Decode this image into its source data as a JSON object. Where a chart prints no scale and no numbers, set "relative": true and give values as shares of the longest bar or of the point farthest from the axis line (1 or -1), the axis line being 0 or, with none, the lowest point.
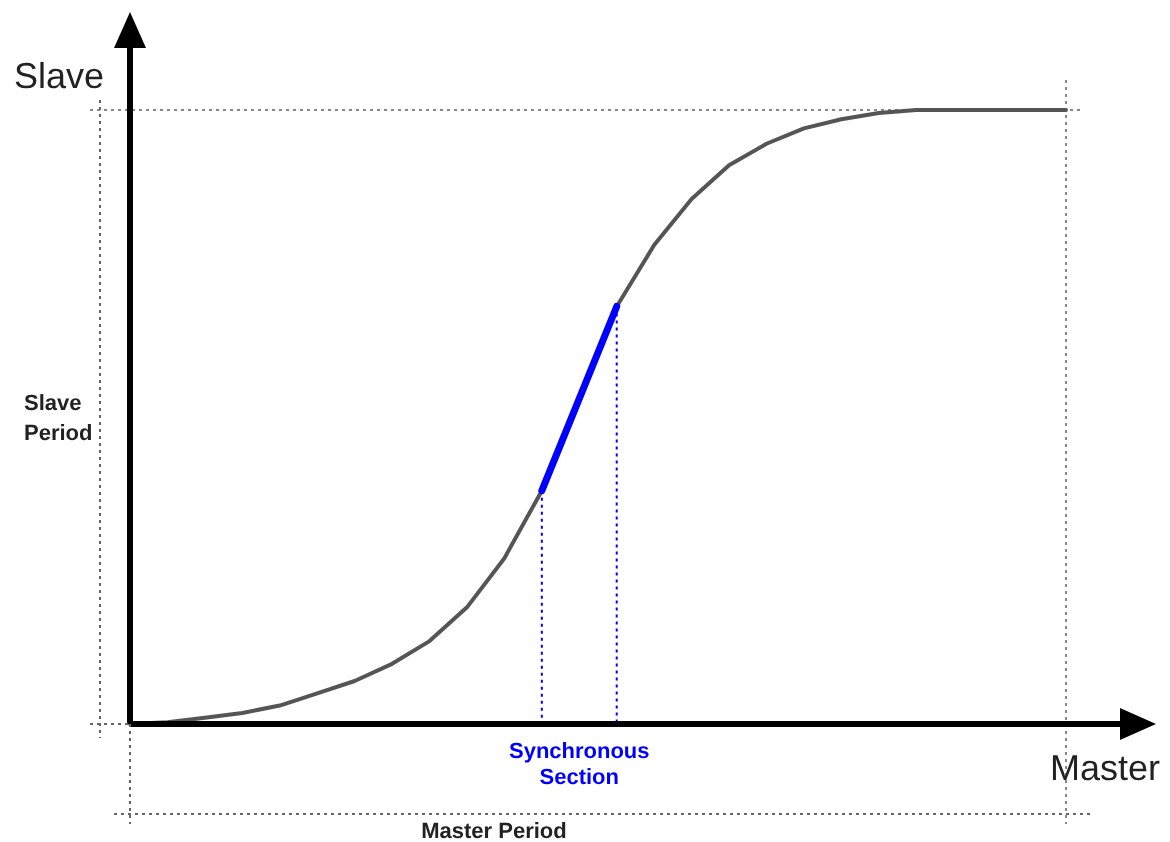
{
  "chart_data": {
    "type": "line",
    "relative": true,
    "xlabel": "Master",
    "ylabel": "Slave",
    "line_style": "solid",
    "categories": [
      null,
      null,
      null,
      null,
      null,
      null,
      null,
      null,
      null,
      null,
      null,
      null,
      null,
      null,
      null,
      null,
      null,
      null,
      null,
      null,
      null,
      null,
      null,
      null,
      null,
      null
    ],
    "series": [
      {
        "color": "#555555",
        "values": [
          0,
          0.003,
          0.01,
          0.018,
          0.03,
          0.05,
          0.07,
          0.098,
          0.135,
          0.19,
          0.27,
          0.38,
          0.53,
          0.68,
          0.78,
          0.855,
          0.91,
          0.945,
          0.97,
          0.985,
          0.995,
          1,
          1,
          1,
          1,
          1
        ]
      },
      {
        "color": "#0000ff",
        "values": [
          null,
          null,
          null,
          null,
          null,
          null,
          null,
          null,
          null,
          null,
          null,
          0.38,
          0.53,
          0.68,
          null,
          null,
          null,
          null,
          null,
          null,
          null,
          null,
          null,
          null,
          null,
          null
        ]
      }
    ],
    "annotations": [
      "Slave Period",
      "Synchronous Section",
      "Master Period"
    ]
  }
}
